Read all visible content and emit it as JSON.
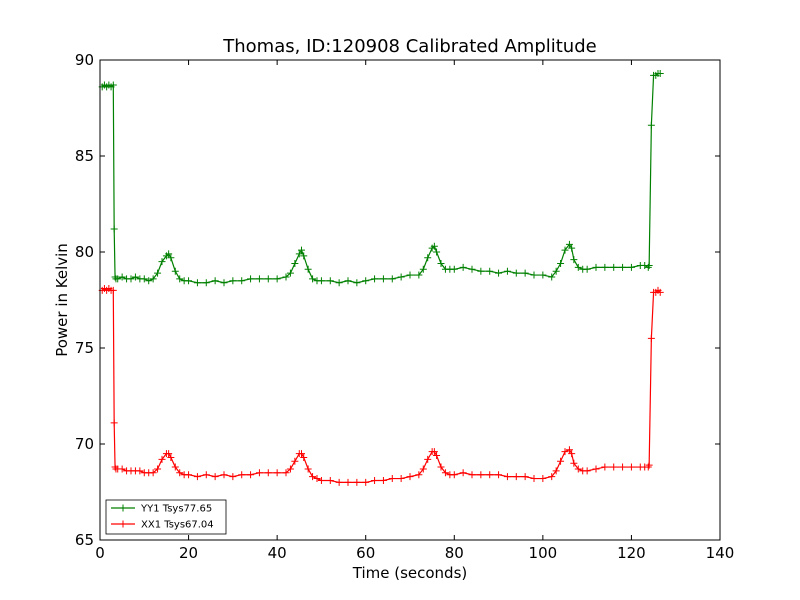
{
  "chart_data": {
    "type": "line",
    "title": "Thomas, ID:120908 Calibrated Amplitude",
    "xlabel": "Time (seconds)",
    "ylabel": "Power in Kelvin",
    "xlim": [
      0,
      140
    ],
    "ylim": [
      65,
      90
    ],
    "xticks": [
      0,
      20,
      40,
      60,
      80,
      100,
      120,
      140
    ],
    "yticks": [
      65,
      70,
      75,
      80,
      85,
      90
    ],
    "grid": false,
    "legend_position": "lower-left",
    "series": [
      {
        "name": "YY1 Tsys77.65",
        "color": "#008000",
        "marker": "plus",
        "x": [
          0.5,
          1.0,
          1.5,
          2.0,
          2.5,
          3.0,
          3.2,
          3.4,
          3.6,
          4.0,
          5.0,
          6.0,
          7.0,
          8.0,
          9.0,
          10.0,
          11.0,
          12.0,
          13.0,
          14.0,
          15.0,
          15.5,
          16.0,
          17.0,
          18.0,
          19.0,
          20.0,
          22.0,
          24.0,
          26.0,
          28.0,
          30.0,
          32.0,
          34.0,
          36.0,
          38.0,
          40.0,
          42.0,
          43.0,
          44.0,
          45.0,
          45.5,
          46.0,
          47.0,
          48.0,
          49.0,
          50.0,
          52.0,
          54.0,
          56.0,
          58.0,
          60.0,
          62.0,
          64.0,
          66.0,
          68.0,
          70.0,
          72.0,
          73.0,
          74.0,
          75.0,
          75.5,
          76.0,
          77.0,
          78.0,
          79.0,
          80.0,
          82.0,
          84.0,
          86.0,
          88.0,
          90.0,
          92.0,
          94.0,
          96.0,
          98.0,
          100.0,
          102.0,
          103.0,
          104.0,
          105.0,
          106.0,
          106.5,
          107.0,
          108.0,
          109.0,
          110.0,
          112.0,
          114.0,
          116.0,
          118.0,
          120.0,
          122.0,
          123.0,
          123.8,
          124.0,
          124.5,
          125.0,
          125.5,
          126.0,
          126.5
        ],
        "y": [
          88.6,
          88.7,
          88.6,
          88.7,
          88.6,
          88.7,
          81.2,
          78.7,
          78.6,
          78.6,
          78.7,
          78.6,
          78.6,
          78.7,
          78.6,
          78.6,
          78.5,
          78.6,
          78.9,
          79.5,
          79.8,
          79.9,
          79.7,
          79.0,
          78.6,
          78.5,
          78.5,
          78.4,
          78.4,
          78.5,
          78.4,
          78.5,
          78.5,
          78.6,
          78.6,
          78.6,
          78.6,
          78.7,
          78.9,
          79.4,
          79.9,
          80.1,
          79.8,
          79.1,
          78.6,
          78.5,
          78.5,
          78.5,
          78.4,
          78.5,
          78.4,
          78.5,
          78.6,
          78.6,
          78.6,
          78.7,
          78.8,
          78.8,
          79.1,
          79.7,
          80.2,
          80.3,
          80.0,
          79.4,
          79.1,
          79.1,
          79.1,
          79.2,
          79.1,
          79.0,
          79.0,
          78.9,
          79.0,
          78.9,
          78.9,
          78.8,
          78.8,
          78.7,
          79.0,
          79.4,
          80.1,
          80.4,
          80.2,
          79.6,
          79.2,
          79.1,
          79.1,
          79.2,
          79.2,
          79.2,
          79.2,
          79.2,
          79.3,
          79.3,
          79.2,
          79.3,
          86.6,
          89.2,
          89.2,
          89.3,
          89.3
        ]
      },
      {
        "name": "XX1 Tsys67.04",
        "color": "#ff0000",
        "marker": "plus",
        "x": [
          0.5,
          1.0,
          1.5,
          2.0,
          2.5,
          3.0,
          3.2,
          3.4,
          3.6,
          4.0,
          5.0,
          6.0,
          7.0,
          8.0,
          9.0,
          10.0,
          11.0,
          12.0,
          13.0,
          14.0,
          15.0,
          15.5,
          16.0,
          17.0,
          18.0,
          19.0,
          20.0,
          22.0,
          24.0,
          26.0,
          28.0,
          30.0,
          32.0,
          34.0,
          36.0,
          38.0,
          40.0,
          42.0,
          43.0,
          44.0,
          45.0,
          45.5,
          46.0,
          47.0,
          48.0,
          49.0,
          50.0,
          52.0,
          54.0,
          56.0,
          58.0,
          60.0,
          62.0,
          64.0,
          66.0,
          68.0,
          70.0,
          72.0,
          73.0,
          74.0,
          75.0,
          75.5,
          76.0,
          77.0,
          78.0,
          79.0,
          80.0,
          82.0,
          84.0,
          86.0,
          88.0,
          90.0,
          92.0,
          94.0,
          96.0,
          98.0,
          100.0,
          102.0,
          103.0,
          104.0,
          105.0,
          106.0,
          106.5,
          107.0,
          108.0,
          109.0,
          110.0,
          112.0,
          114.0,
          116.0,
          118.0,
          120.0,
          122.0,
          123.0,
          123.8,
          124.0,
          124.5,
          125.0,
          125.5,
          126.0,
          126.5
        ],
        "y": [
          78.0,
          78.1,
          78.0,
          78.1,
          78.0,
          78.0,
          71.1,
          68.8,
          68.7,
          68.7,
          68.7,
          68.6,
          68.6,
          68.6,
          68.6,
          68.5,
          68.5,
          68.5,
          68.7,
          69.2,
          69.5,
          69.5,
          69.3,
          68.8,
          68.5,
          68.4,
          68.4,
          68.3,
          68.4,
          68.3,
          68.4,
          68.3,
          68.4,
          68.4,
          68.5,
          68.5,
          68.5,
          68.5,
          68.7,
          69.1,
          69.5,
          69.5,
          69.3,
          68.7,
          68.3,
          68.2,
          68.1,
          68.1,
          68.0,
          68.0,
          68.0,
          68.0,
          68.1,
          68.1,
          68.2,
          68.2,
          68.3,
          68.4,
          68.7,
          69.2,
          69.6,
          69.6,
          69.4,
          68.8,
          68.5,
          68.4,
          68.4,
          68.5,
          68.4,
          68.4,
          68.4,
          68.4,
          68.3,
          68.3,
          68.3,
          68.2,
          68.2,
          68.3,
          68.6,
          69.1,
          69.6,
          69.7,
          69.5,
          69.0,
          68.7,
          68.6,
          68.6,
          68.7,
          68.8,
          68.8,
          68.8,
          68.8,
          68.8,
          68.8,
          68.8,
          68.9,
          75.5,
          77.9,
          77.9,
          78.0,
          77.9
        ]
      }
    ]
  }
}
